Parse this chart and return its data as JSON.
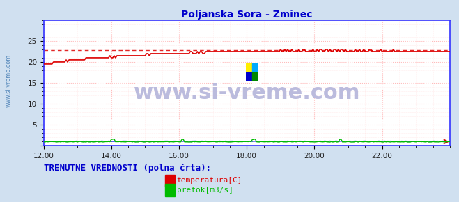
{
  "title": "Poljanska Sora - Zminec",
  "title_color": "#0000cc",
  "bg_color": "#d0e0f0",
  "plot_bg_color": "#ffffff",
  "grid_color": "#ffbbbb",
  "grid_minor_color": "#ffdddd",
  "xlim": [
    0,
    288
  ],
  "ylim": [
    0,
    30
  ],
  "ytick_labels": [
    "",
    "5",
    "10",
    "15",
    "20",
    "25"
  ],
  "ytick_positions": [
    0,
    5,
    10,
    15,
    20,
    25
  ],
  "xtick_labels": [
    "12:00",
    "14:00",
    "16:00",
    "18:00",
    "20:00",
    "22:00"
  ],
  "xtick_positions": [
    0,
    48,
    96,
    144,
    192,
    240
  ],
  "border_color": "#3333ff",
  "watermark_text": "www.si-vreme.com",
  "watermark_color": "#bbbbdd",
  "watermark_fontsize": 22,
  "sidebar_text": "www.si-vreme.com",
  "sidebar_color": "#5588bb",
  "legend_label1": "temperatura[C]",
  "legend_label2": "pretok[m3/s]",
  "legend_color1": "#dd0000",
  "legend_color2": "#00bb00",
  "footer_text": "TRENUTNE VREDNOSTI (polna črta):",
  "footer_color": "#0000cc",
  "footer_fontsize": 9,
  "temp_color": "#dd0000",
  "flow_color": "#00bb00",
  "height_color": "#3333ff",
  "max_temp_dashed_y": 22.8,
  "max_flow_dashed_y": 1.0
}
